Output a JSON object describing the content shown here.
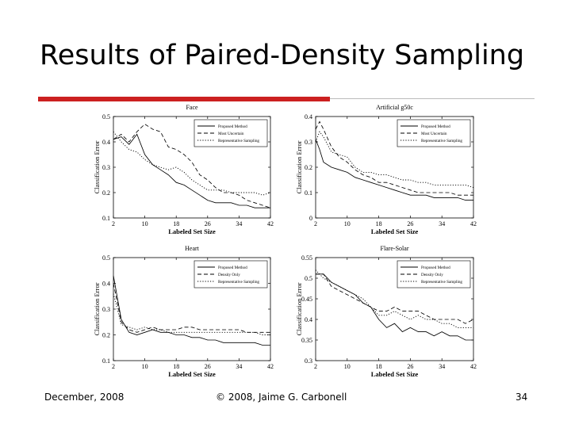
{
  "slide": {
    "title": "Results of Paired-Density Sampling",
    "accent_color": "#cc2020",
    "rule_color": "#bbbbbb"
  },
  "footer": {
    "date": "December, 2008",
    "copyright": "© 2008, Jaime G. Carbonell",
    "page": "34"
  },
  "chart_data": [
    {
      "type": "line",
      "title": "Face",
      "xlabel": "Labeled Set Size",
      "ylabel": "Classification Error",
      "xlim": [
        2,
        42
      ],
      "ylim": [
        0.1,
        0.5
      ],
      "xticks": [
        2,
        10,
        18,
        26,
        34,
        42
      ],
      "yticks": [
        0.1,
        0.2,
        0.3,
        0.4,
        0.5
      ],
      "ytick_labels": [
        "0.1",
        "0.2",
        "0.3",
        "0.4",
        "0.5"
      ],
      "legend_position": "top-right",
      "series": [
        {
          "name": "Proposed Method",
          "style": "solid",
          "x": [
            2,
            4,
            6,
            8,
            10,
            12,
            14,
            16,
            18,
            20,
            22,
            24,
            26,
            28,
            30,
            32,
            34,
            36,
            38,
            40,
            42
          ],
          "values": [
            0.41,
            0.42,
            0.39,
            0.43,
            0.35,
            0.31,
            0.29,
            0.27,
            0.24,
            0.23,
            0.21,
            0.19,
            0.17,
            0.16,
            0.16,
            0.16,
            0.15,
            0.15,
            0.14,
            0.14,
            0.14
          ]
        },
        {
          "name": "Most Uncertain",
          "style": "dashed",
          "x": [
            2,
            4,
            6,
            8,
            10,
            12,
            14,
            16,
            18,
            20,
            22,
            24,
            26,
            28,
            30,
            32,
            34,
            36,
            38,
            40,
            42
          ],
          "values": [
            0.41,
            0.43,
            0.4,
            0.44,
            0.47,
            0.45,
            0.44,
            0.38,
            0.37,
            0.35,
            0.32,
            0.27,
            0.25,
            0.22,
            0.2,
            0.2,
            0.19,
            0.17,
            0.16,
            0.15,
            0.14
          ]
        },
        {
          "name": "Representative Sampling",
          "style": "dotted",
          "x": [
            2,
            4,
            6,
            8,
            10,
            12,
            14,
            16,
            18,
            20,
            22,
            24,
            26,
            28,
            30,
            32,
            34,
            36,
            38,
            40,
            42
          ],
          "values": [
            0.44,
            0.4,
            0.37,
            0.36,
            0.33,
            0.31,
            0.3,
            0.29,
            0.3,
            0.28,
            0.25,
            0.23,
            0.21,
            0.21,
            0.21,
            0.2,
            0.2,
            0.2,
            0.2,
            0.19,
            0.2
          ]
        }
      ]
    },
    {
      "type": "line",
      "title": "Artificial g50c",
      "xlabel": "Labeled Set Size",
      "ylabel": "Classification Error",
      "xlim": [
        2,
        42
      ],
      "ylim": [
        0,
        0.4
      ],
      "xticks": [
        2,
        10,
        18,
        26,
        34,
        42
      ],
      "yticks": [
        0,
        0.1,
        0.2,
        0.3,
        0.4
      ],
      "ytick_labels": [
        "0",
        "0.1",
        "0.2",
        "0.3",
        "0.4"
      ],
      "legend_position": "top-right",
      "series": [
        {
          "name": "Proposed Method",
          "style": "solid",
          "x": [
            2,
            3,
            4,
            6,
            8,
            10,
            12,
            14,
            16,
            18,
            20,
            22,
            24,
            26,
            28,
            30,
            32,
            34,
            36,
            38,
            40,
            42
          ],
          "values": [
            0.31,
            0.27,
            0.22,
            0.2,
            0.19,
            0.18,
            0.16,
            0.15,
            0.14,
            0.13,
            0.12,
            0.11,
            0.1,
            0.09,
            0.09,
            0.09,
            0.08,
            0.08,
            0.08,
            0.08,
            0.07,
            0.07
          ]
        },
        {
          "name": "Most Uncertain",
          "style": "dashed",
          "x": [
            2,
            3,
            4,
            6,
            8,
            10,
            12,
            14,
            16,
            18,
            20,
            22,
            24,
            26,
            28,
            30,
            32,
            34,
            36,
            38,
            40,
            42
          ],
          "values": [
            0.35,
            0.38,
            0.35,
            0.28,
            0.24,
            0.22,
            0.19,
            0.17,
            0.16,
            0.14,
            0.14,
            0.13,
            0.12,
            0.11,
            0.1,
            0.1,
            0.1,
            0.1,
            0.1,
            0.09,
            0.09,
            0.09
          ]
        },
        {
          "name": "Representative Sampling",
          "style": "dotted",
          "x": [
            2,
            3,
            4,
            6,
            8,
            10,
            12,
            14,
            16,
            18,
            20,
            22,
            24,
            26,
            28,
            30,
            32,
            34,
            36,
            38,
            40,
            42
          ],
          "values": [
            0.3,
            0.34,
            0.32,
            0.26,
            0.25,
            0.24,
            0.2,
            0.18,
            0.18,
            0.17,
            0.17,
            0.16,
            0.15,
            0.15,
            0.14,
            0.14,
            0.13,
            0.13,
            0.13,
            0.13,
            0.13,
            0.12
          ]
        }
      ]
    },
    {
      "type": "line",
      "title": "Heart",
      "xlabel": "Labeled Set Size",
      "ylabel": "Classification Error",
      "xlim": [
        2,
        42
      ],
      "ylim": [
        0.1,
        0.5
      ],
      "xticks": [
        2,
        10,
        18,
        26,
        34,
        42
      ],
      "yticks": [
        0.1,
        0.2,
        0.3,
        0.4,
        0.5
      ],
      "ytick_labels": [
        "0.1",
        "0.2",
        "0.3",
        "0.4",
        "0.5"
      ],
      "legend_position": "top-right",
      "series": [
        {
          "name": "Proposed Method",
          "style": "solid",
          "x": [
            2,
            4,
            6,
            8,
            10,
            12,
            14,
            16,
            18,
            20,
            22,
            24,
            26,
            28,
            30,
            32,
            34,
            36,
            38,
            40,
            42
          ],
          "values": [
            0.43,
            0.26,
            0.21,
            0.2,
            0.21,
            0.22,
            0.21,
            0.21,
            0.2,
            0.2,
            0.19,
            0.19,
            0.18,
            0.18,
            0.17,
            0.17,
            0.17,
            0.17,
            0.17,
            0.16,
            0.16
          ]
        },
        {
          "name": "Density Only",
          "style": "dashed",
          "x": [
            2,
            4,
            6,
            8,
            10,
            12,
            14,
            16,
            18,
            20,
            22,
            24,
            26,
            28,
            30,
            32,
            34,
            36,
            38,
            40,
            42
          ],
          "values": [
            0.4,
            0.25,
            0.22,
            0.21,
            0.22,
            0.23,
            0.22,
            0.22,
            0.22,
            0.23,
            0.23,
            0.22,
            0.22,
            0.22,
            0.22,
            0.22,
            0.22,
            0.21,
            0.21,
            0.21,
            0.21
          ]
        },
        {
          "name": "Representative Sampling",
          "style": "dotted",
          "x": [
            2,
            4,
            6,
            8,
            10,
            12,
            14,
            16,
            18,
            20,
            22,
            24,
            26,
            28,
            30,
            32,
            34,
            36,
            38,
            40,
            42
          ],
          "values": [
            0.36,
            0.24,
            0.23,
            0.22,
            0.23,
            0.22,
            0.22,
            0.21,
            0.21,
            0.21,
            0.21,
            0.21,
            0.21,
            0.21,
            0.21,
            0.21,
            0.21,
            0.21,
            0.21,
            0.2,
            0.2
          ]
        }
      ]
    },
    {
      "type": "line",
      "title": "Flare-Solar",
      "xlabel": "Labeled Set Size",
      "ylabel": "Classification Error",
      "xlim": [
        2,
        42
      ],
      "ylim": [
        0.3,
        0.55
      ],
      "xticks": [
        2,
        10,
        18,
        26,
        34,
        42
      ],
      "yticks": [
        0.3,
        0.35,
        0.4,
        0.45,
        0.5,
        0.55
      ],
      "ytick_labels": [
        "0.3",
        "0.35",
        "0.4",
        "0.45",
        "0.5",
        "0.55"
      ],
      "legend_position": "top-right",
      "series": [
        {
          "name": "Proposed Method",
          "style": "solid",
          "x": [
            2,
            4,
            6,
            8,
            10,
            12,
            14,
            16,
            18,
            20,
            22,
            24,
            26,
            28,
            30,
            32,
            34,
            36,
            38,
            40,
            42
          ],
          "values": [
            0.51,
            0.51,
            0.49,
            0.48,
            0.47,
            0.46,
            0.44,
            0.43,
            0.4,
            0.38,
            0.39,
            0.37,
            0.38,
            0.37,
            0.37,
            0.36,
            0.37,
            0.36,
            0.36,
            0.35,
            0.35
          ]
        },
        {
          "name": "Density Only",
          "style": "dashed",
          "x": [
            2,
            4,
            6,
            8,
            10,
            12,
            14,
            16,
            18,
            20,
            22,
            24,
            26,
            28,
            30,
            32,
            34,
            36,
            38,
            40,
            42
          ],
          "values": [
            0.51,
            0.51,
            0.48,
            0.47,
            0.46,
            0.45,
            0.44,
            0.43,
            0.42,
            0.42,
            0.43,
            0.42,
            0.42,
            0.42,
            0.41,
            0.4,
            0.4,
            0.4,
            0.4,
            0.39,
            0.4
          ]
        },
        {
          "name": "Representative Sampling",
          "style": "dotted",
          "x": [
            2,
            4,
            6,
            8,
            10,
            12,
            14,
            16,
            18,
            20,
            22,
            24,
            26,
            28,
            30,
            32,
            34,
            36,
            38,
            40,
            42
          ],
          "values": [
            0.52,
            0.5,
            0.49,
            0.48,
            0.47,
            0.46,
            0.45,
            0.43,
            0.41,
            0.41,
            0.42,
            0.41,
            0.4,
            0.41,
            0.4,
            0.4,
            0.39,
            0.39,
            0.38,
            0.38,
            0.38
          ]
        }
      ]
    }
  ]
}
